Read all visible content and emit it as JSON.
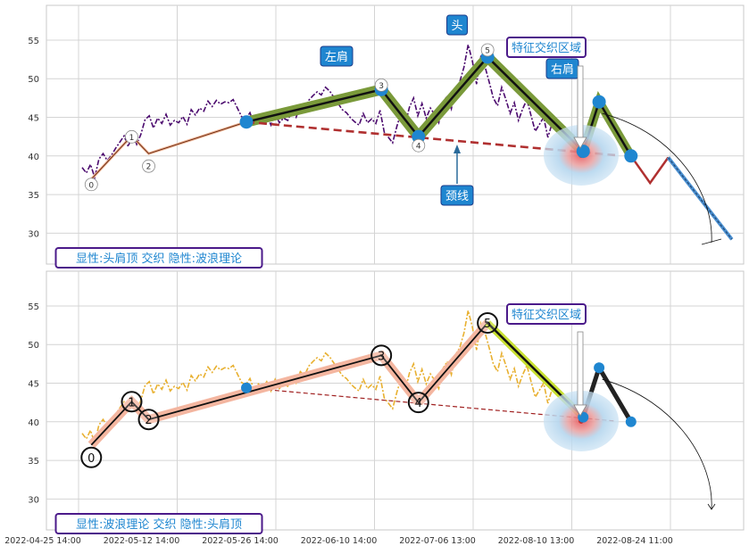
{
  "chart_data": [
    {
      "type": "line",
      "ylim": [
        26,
        59.5
      ],
      "yticks": [
        30,
        35,
        40,
        45,
        50,
        55
      ],
      "xticks": [
        "2022-04-25 14:00",
        "2022-05-12 14:00",
        "2022-05-26 14:00",
        "2022-06-10 14:00",
        "2022-07-06 13:00",
        "2022-08-10 13:00",
        "2022-08-24 11:00"
      ],
      "grid": true,
      "legend_box": "显性:头肩顶 交织 隐性:波浪理论",
      "price_series": [
        38.5,
        37.8,
        38.9,
        37.2,
        39.6,
        40.3,
        39.4,
        40.1,
        41.0,
        41.8,
        42.6,
        41.2,
        43.0,
        41.5,
        42.8,
        44.7,
        45.2,
        43.6,
        44.9,
        44.2,
        45.4,
        44.0,
        44.6,
        44.3,
        45.1,
        44.1,
        46.0,
        45.3,
        46.2,
        45.8,
        47.1,
        46.4,
        47.2,
        46.7,
        47.0,
        46.9,
        47.3,
        46.2,
        45.1,
        44.8,
        45.6,
        44.1,
        44.9,
        44.4,
        45.2,
        44.0,
        45.5,
        44.3,
        44.9,
        44.6,
        45.8,
        45.0,
        46.5,
        46.0,
        47.2,
        47.8,
        48.3,
        47.9,
        48.9,
        48.4,
        47.6,
        46.8,
        46.0,
        45.6,
        44.9,
        44.4,
        44.0,
        45.5,
        44.3,
        44.8,
        44.2,
        45.9,
        43.1,
        42.4,
        41.7,
        43.8,
        45.6,
        44.1,
        46.3,
        47.5,
        45.2,
        46.8,
        44.9,
        46.2,
        45.4,
        44.3,
        46.9,
        47.8,
        46.1,
        48.7,
        49.6,
        51.5,
        54.4,
        52.3,
        49.3,
        52.8,
        51.6,
        49.6,
        47.5,
        46.5,
        48.9,
        47.3,
        45.5,
        46.9,
        44.6,
        46.1,
        47.3,
        45.2,
        43.2,
        44.1,
        45.0,
        42.4,
        44.2
      ],
      "wave_points": [
        {
          "label": "0",
          "x": 1.2,
          "y": 37.0
        },
        {
          "label": "1",
          "x": 5.0,
          "y": 42.6
        },
        {
          "label": "2",
          "x": 6.6,
          "y": 40.3
        },
        {
          "label": "3",
          "x": 28.5,
          "y": 48.6
        },
        {
          "label": "4",
          "x": 32.0,
          "y": 42.5
        },
        {
          "label": "5",
          "x": 38.5,
          "y": 52.8
        }
      ],
      "hs_points": [
        {
          "x": 15.8,
          "y": 44.4
        },
        {
          "x": 28.5,
          "y": 48.6
        },
        {
          "x": 32.0,
          "y": 42.5
        },
        {
          "x": 38.5,
          "y": 52.8
        },
        {
          "x": 47.5,
          "y": 40.6
        },
        {
          "x": 49.0,
          "y": 47.0
        },
        {
          "x": 52.0,
          "y": 40.0
        }
      ],
      "neckline": {
        "x1": 15.8,
        "y1": 44.4,
        "x2": 50.5,
        "y2": 40.1
      },
      "projection": [
        {
          "x": 52.0,
          "y": 40.0
        },
        {
          "x": 53.8,
          "y": 36.5
        },
        {
          "x": 55.5,
          "y": 39.8
        },
        {
          "x": 61.5,
          "y": 29.2
        }
      ],
      "annotations": {
        "left_shoulder": "左肩",
        "head": "头",
        "right_shoulder": "右肩",
        "neckline": "颈线",
        "feature_zone": "特征交织区域"
      }
    },
    {
      "type": "line",
      "ylim": [
        26,
        59.5
      ],
      "yticks": [
        30,
        35,
        40,
        45,
        50,
        55
      ],
      "xticks": [
        "2022-04-25 14:00",
        "2022-05-12 14:00",
        "2022-05-26 14:00",
        "2022-06-10 14:00",
        "2022-07-06 13:00",
        "2022-08-10 13:00",
        "2022-08-24 11:00"
      ],
      "grid": true,
      "legend_box": "显性:波浪理论 交织 隐性:头肩顶",
      "wave_points": [
        {
          "label": "0",
          "x": 1.2,
          "y": 37.0
        },
        {
          "label": "1",
          "x": 5.0,
          "y": 42.6
        },
        {
          "label": "2",
          "x": 6.6,
          "y": 40.3
        },
        {
          "label": "3",
          "x": 28.5,
          "y": 48.6
        },
        {
          "label": "4",
          "x": 32.0,
          "y": 42.5
        },
        {
          "label": "5",
          "x": 38.5,
          "y": 52.8
        }
      ],
      "hs_points": [
        {
          "x": 15.8,
          "y": 44.4
        },
        {
          "x": 47.5,
          "y": 40.6
        },
        {
          "x": 49.0,
          "y": 47.0
        },
        {
          "x": 52.0,
          "y": 40.0
        }
      ],
      "annotations": {
        "feature_zone": "特征交织区域"
      }
    }
  ]
}
